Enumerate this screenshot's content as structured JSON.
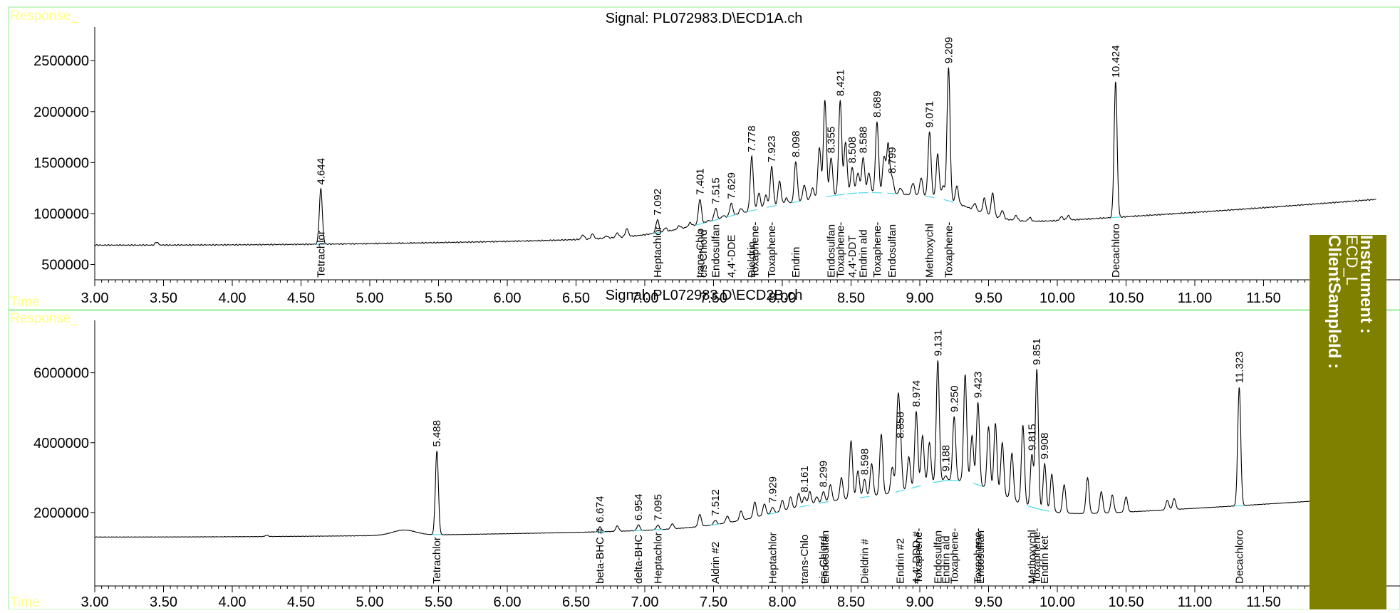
{
  "side_panel": {
    "instrument_label": "Instrument :",
    "instrument_value": "ECD_L",
    "client_label": "ClientSampleId :",
    "color": "#808000"
  },
  "chart_data": [
    {
      "type": "line",
      "title": "Signal: PL072983.D\\ECD1A.ch",
      "ylabel": "Response_",
      "xlabel": "Time",
      "xlim": [
        3.0,
        12.32
      ],
      "ylim": [
        350000,
        2830000
      ],
      "yticks": [
        500000,
        1000000,
        1500000,
        2000000,
        2500000
      ],
      "ytick_labels": [
        "500000",
        "1000000",
        "1500000",
        "2000000",
        "2500000"
      ],
      "xticks": [
        3.0,
        3.5,
        4.0,
        4.5,
        5.0,
        5.5,
        6.0,
        6.5,
        7.0,
        7.5,
        8.0,
        8.5,
        9.0,
        9.5,
        10.0,
        10.5,
        11.0,
        11.5
      ],
      "xtick_labels": [
        "3.00",
        "3.50",
        "4.00",
        "4.50",
        "5.00",
        "5.50",
        "6.00",
        "6.50",
        "7.00",
        "7.50",
        "8.00",
        "8.50",
        "9.00",
        "9.50",
        "10.00",
        "10.50",
        "11.00",
        "11.50"
      ],
      "baseline_start": 690000,
      "baseline_end": 1140000,
      "hump": [
        {
          "x": 8.0,
          "h": 250000,
          "w": 0.7
        },
        {
          "x": 8.7,
          "h": 250000,
          "w": 0.5
        },
        {
          "x": 9.2,
          "h": 150000,
          "w": 0.35
        }
      ],
      "peaks": [
        {
          "rt": 3.45,
          "height": 720000
        },
        {
          "rt": 4.644,
          "height": 1240000,
          "label": "4.644"
        },
        {
          "rt": 6.55,
          "height": 790000
        },
        {
          "rt": 6.62,
          "height": 800000
        },
        {
          "rt": 6.72,
          "height": 780000
        },
        {
          "rt": 6.8,
          "height": 810000
        },
        {
          "rt": 6.87,
          "height": 850000
        },
        {
          "rt": 6.95,
          "height": 760000
        },
        {
          "rt": 7.03,
          "height": 790000
        },
        {
          "rt": 7.092,
          "height": 940000,
          "label": "7.092"
        },
        {
          "rt": 7.15,
          "height": 860000
        },
        {
          "rt": 7.25,
          "height": 880000
        },
        {
          "rt": 7.33,
          "height": 910000
        },
        {
          "rt": 7.401,
          "height": 1140000,
          "label": "7.401"
        },
        {
          "rt": 7.46,
          "height": 930000
        },
        {
          "rt": 7.515,
          "height": 1050000,
          "label": "7.515"
        },
        {
          "rt": 7.57,
          "height": 980000
        },
        {
          "rt": 7.629,
          "height": 1100000,
          "label": "7.629"
        },
        {
          "rt": 7.7,
          "height": 1050000
        },
        {
          "rt": 7.778,
          "height": 1560000,
          "label": "7.778"
        },
        {
          "rt": 7.83,
          "height": 1200000
        },
        {
          "rt": 7.88,
          "height": 1180000
        },
        {
          "rt": 7.923,
          "height": 1460000,
          "label": "7.923"
        },
        {
          "rt": 7.98,
          "height": 1320000
        },
        {
          "rt": 8.03,
          "height": 1150000
        },
        {
          "rt": 8.098,
          "height": 1510000,
          "label": "8.098"
        },
        {
          "rt": 8.16,
          "height": 1280000
        },
        {
          "rt": 8.22,
          "height": 1250000
        },
        {
          "rt": 8.27,
          "height": 1650000
        },
        {
          "rt": 8.31,
          "height": 2110000
        },
        {
          "rt": 8.355,
          "height": 1550000,
          "label": "8.355"
        },
        {
          "rt": 8.421,
          "height": 2110000,
          "label": "8.421"
        },
        {
          "rt": 8.46,
          "height": 1700000
        },
        {
          "rt": 8.508,
          "height": 1450000,
          "label": "8.508"
        },
        {
          "rt": 8.55,
          "height": 1400000
        },
        {
          "rt": 8.588,
          "height": 1550000,
          "label": "8.588"
        },
        {
          "rt": 8.63,
          "height": 1400000
        },
        {
          "rt": 8.689,
          "height": 1900000,
          "label": "8.689"
        },
        {
          "rt": 8.74,
          "height": 1550000
        },
        {
          "rt": 8.77,
          "height": 1680000
        },
        {
          "rt": 8.799,
          "height": 1350000,
          "label": "8.799"
        },
        {
          "rt": 8.86,
          "height": 1250000
        },
        {
          "rt": 8.95,
          "height": 1300000
        },
        {
          "rt": 9.01,
          "height": 1350000
        },
        {
          "rt": 9.071,
          "height": 1800000,
          "label": "9.071"
        },
        {
          "rt": 9.13,
          "height": 1580000
        },
        {
          "rt": 9.17,
          "height": 1270000
        },
        {
          "rt": 9.209,
          "height": 2430000,
          "label": "9.209"
        },
        {
          "rt": 9.27,
          "height": 1270000
        },
        {
          "rt": 9.4,
          "height": 1100000
        },
        {
          "rt": 9.47,
          "height": 1150000
        },
        {
          "rt": 9.53,
          "height": 1200000
        },
        {
          "rt": 9.6,
          "height": 1030000
        },
        {
          "rt": 9.7,
          "height": 980000
        },
        {
          "rt": 9.8,
          "height": 960000
        },
        {
          "rt": 10.03,
          "height": 970000
        },
        {
          "rt": 10.08,
          "height": 980000
        },
        {
          "rt": 10.424,
          "height": 2290000,
          "label": "10.424"
        }
      ],
      "compounds": [
        {
          "rt": 4.644,
          "name": "Tetrachlor"
        },
        {
          "rt": 7.092,
          "name": "Heptachlor"
        },
        {
          "rt": 7.401,
          "name": "trans-Chlo"
        },
        {
          "rt": 7.425,
          "name": "cis-Chlord"
        },
        {
          "rt": 7.515,
          "name": "Endosulfan"
        },
        {
          "rt": 7.629,
          "name": "4,4'-DDE"
        },
        {
          "rt": 7.778,
          "name": "Dieldrin"
        },
        {
          "rt": 7.8,
          "name": "Toxaphene-"
        },
        {
          "rt": 7.923,
          "name": "Toxaphene-"
        },
        {
          "rt": 8.098,
          "name": "Endrin"
        },
        {
          "rt": 8.355,
          "name": "Endosulfan"
        },
        {
          "rt": 8.421,
          "name": "Toxaphene-"
        },
        {
          "rt": 8.508,
          "name": "4,4'-DDT"
        },
        {
          "rt": 8.588,
          "name": "Endrin ald"
        },
        {
          "rt": 8.689,
          "name": "Toxaphene-"
        },
        {
          "rt": 8.799,
          "name": "Endosulfan"
        },
        {
          "rt": 9.071,
          "name": "Methoxychl"
        },
        {
          "rt": 9.209,
          "name": "Toxaphene-"
        },
        {
          "rt": 10.424,
          "name": "Decachloro"
        }
      ]
    },
    {
      "type": "line",
      "title": "Signal: PL072983.D\\ECD2B.ch",
      "ylabel": "Response_",
      "xlabel": "Time",
      "xlim": [
        3.0,
        12.32
      ],
      "ylim": [
        -100000,
        7500000
      ],
      "yticks": [
        2000000,
        4000000,
        6000000
      ],
      "ytick_labels": [
        "2000000",
        "4000000",
        "6000000"
      ],
      "xticks": [
        3.0,
        3.5,
        4.0,
        4.5,
        5.0,
        5.5,
        6.0,
        6.5,
        7.0,
        7.5,
        8.0,
        8.5,
        9.0,
        9.5,
        10.0,
        10.5,
        11.0,
        11.5
      ],
      "xtick_labels": [
        "3.00",
        "3.50",
        "4.00",
        "4.50",
        "5.00",
        "5.50",
        "6.00",
        "6.50",
        "7.00",
        "7.50",
        "8.00",
        "8.50",
        "9.00",
        "9.50",
        "10.00",
        "10.50",
        "11.00",
        "11.50"
      ],
      "baseline_start": 1300000,
      "baseline_end": 2450000,
      "hump": [
        {
          "x": 8.5,
          "h": 700000,
          "w": 0.75
        },
        {
          "x": 9.3,
          "h": 900000,
          "w": 0.45
        },
        {
          "x": 5.25,
          "h": 150000,
          "w": 0.12
        }
      ],
      "peaks": [
        {
          "rt": 4.25,
          "height": 1350000
        },
        {
          "rt": 5.488,
          "height": 3760000,
          "label": "5.488"
        },
        {
          "rt": 6.674,
          "height": 1590000,
          "label": "6.674"
        },
        {
          "rt": 6.8,
          "height": 1620000
        },
        {
          "rt": 6.954,
          "height": 1650000,
          "label": "6.954"
        },
        {
          "rt": 7.095,
          "height": 1640000,
          "label": "7.095"
        },
        {
          "rt": 7.2,
          "height": 1680000
        },
        {
          "rt": 7.4,
          "height": 1950000
        },
        {
          "rt": 7.512,
          "height": 1780000,
          "label": "7.512"
        },
        {
          "rt": 7.6,
          "height": 1900000
        },
        {
          "rt": 7.7,
          "height": 2050000
        },
        {
          "rt": 7.8,
          "height": 2300000
        },
        {
          "rt": 7.87,
          "height": 2250000
        },
        {
          "rt": 7.929,
          "height": 2150000,
          "label": "7.929"
        },
        {
          "rt": 8.0,
          "height": 2350000
        },
        {
          "rt": 8.06,
          "height": 2450000
        },
        {
          "rt": 8.12,
          "height": 2550000
        },
        {
          "rt": 8.161,
          "height": 2450000,
          "label": "8.161"
        },
        {
          "rt": 8.2,
          "height": 2600000
        },
        {
          "rt": 8.25,
          "height": 2450000
        },
        {
          "rt": 8.299,
          "height": 2600000,
          "label": "8.299"
        },
        {
          "rt": 8.35,
          "height": 2800000
        },
        {
          "rt": 8.43,
          "height": 3000000
        },
        {
          "rt": 8.5,
          "height": 4050000
        },
        {
          "rt": 8.55,
          "height": 3200000
        },
        {
          "rt": 8.598,
          "height": 2950000,
          "label": "8.598"
        },
        {
          "rt": 8.65,
          "height": 3400000
        },
        {
          "rt": 8.72,
          "height": 4250000
        },
        {
          "rt": 8.8,
          "height": 3300000
        },
        {
          "rt": 8.84,
          "height": 4950000
        },
        {
          "rt": 8.858,
          "height": 4000000,
          "label": "8.858"
        },
        {
          "rt": 8.92,
          "height": 3600000
        },
        {
          "rt": 8.974,
          "height": 4900000,
          "label": "8.974"
        },
        {
          "rt": 9.02,
          "height": 4200000
        },
        {
          "rt": 9.07,
          "height": 4000000
        },
        {
          "rt": 9.131,
          "height": 6350000,
          "label": "9.131"
        },
        {
          "rt": 9.188,
          "height": 3050000,
          "label": "9.188"
        },
        {
          "rt": 9.25,
          "height": 4750000,
          "label": "9.250"
        },
        {
          "rt": 9.33,
          "height": 5950000
        },
        {
          "rt": 9.38,
          "height": 4200000
        },
        {
          "rt": 9.423,
          "height": 5150000,
          "label": "9.423"
        },
        {
          "rt": 9.5,
          "height": 4450000
        },
        {
          "rt": 9.55,
          "height": 4550000
        },
        {
          "rt": 9.6,
          "height": 4000000
        },
        {
          "rt": 9.67,
          "height": 3700000
        },
        {
          "rt": 9.75,
          "height": 4500000
        },
        {
          "rt": 9.815,
          "height": 3650000,
          "label": "9.815"
        },
        {
          "rt": 9.851,
          "height": 6100000,
          "label": "9.851"
        },
        {
          "rt": 9.908,
          "height": 3400000,
          "label": "9.908"
        },
        {
          "rt": 9.96,
          "height": 3100000
        },
        {
          "rt": 10.05,
          "height": 2800000
        },
        {
          "rt": 10.22,
          "height": 3000000
        },
        {
          "rt": 10.32,
          "height": 2600000
        },
        {
          "rt": 10.4,
          "height": 2500000
        },
        {
          "rt": 10.5,
          "height": 2450000
        },
        {
          "rt": 10.8,
          "height": 2350000
        },
        {
          "rt": 10.85,
          "height": 2400000
        },
        {
          "rt": 11.323,
          "height": 5580000,
          "label": "11.323"
        }
      ],
      "compounds": [
        {
          "rt": 5.488,
          "name": "Tetrachlor"
        },
        {
          "rt": 6.674,
          "name": "beta-BHC #"
        },
        {
          "rt": 6.954,
          "name": "delta-BHC"
        },
        {
          "rt": 7.095,
          "name": "Heptachlor"
        },
        {
          "rt": 7.512,
          "name": "Aldrin #2"
        },
        {
          "rt": 7.929,
          "name": "Heptachlor"
        },
        {
          "rt": 8.161,
          "name": "trans-Chlo"
        },
        {
          "rt": 8.299,
          "name": "cis-Chlord"
        },
        {
          "rt": 8.31,
          "name": "Endosulfan"
        },
        {
          "rt": 8.598,
          "name": "Dieldrin #"
        },
        {
          "rt": 8.858,
          "name": "Endrin #2"
        },
        {
          "rt": 8.974,
          "name": "4,4'-DDD #"
        },
        {
          "rt": 8.99,
          "name": "Toxaphene-"
        },
        {
          "rt": 9.131,
          "name": "Endosulfan"
        },
        {
          "rt": 9.188,
          "name": "Endrin ald"
        },
        {
          "rt": 9.25,
          "name": "Toxaphene-"
        },
        {
          "rt": 9.423,
          "name": "Toxaphene-"
        },
        {
          "rt": 9.44,
          "name": "Endosulfan"
        },
        {
          "rt": 9.815,
          "name": "Methoxychl"
        },
        {
          "rt": 9.851,
          "name": "Toxaphene-"
        },
        {
          "rt": 9.908,
          "name": "Endrin ket"
        },
        {
          "rt": 11.323,
          "name": "Decachloro"
        }
      ]
    }
  ]
}
